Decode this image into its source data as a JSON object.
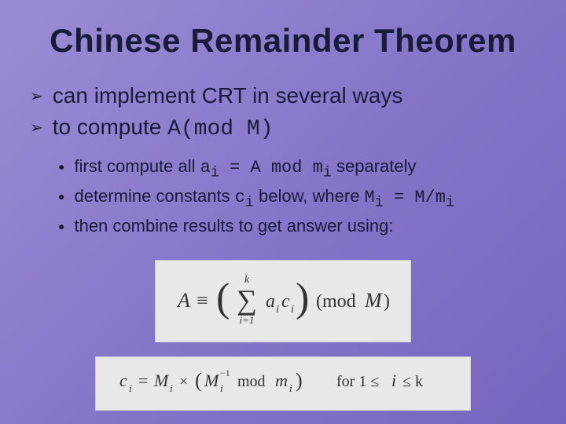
{
  "title": "Chinese Remainder Theorem",
  "bullets": [
    {
      "text_before": "can implement CRT in several ways",
      "mono": "",
      "text_after": ""
    },
    {
      "text_before": "to compute ",
      "mono": "A(mod M)",
      "text_after": ""
    }
  ],
  "sub_bullets": [
    {
      "parts": [
        "first compute all ",
        "a",
        "i",
        " = A mod m",
        "i",
        " separately"
      ]
    },
    {
      "parts": [
        "determine constants ",
        "c",
        "i",
        " below, where ",
        "M",
        "i",
        " = M/m",
        "i"
      ]
    },
    {
      "parts": [
        "then combine results to get answer using:"
      ]
    }
  ],
  "formula1": {
    "lhs": "A",
    "op": "≡",
    "sum_upper": "k",
    "sum_lower": "i=1",
    "term_a": "a",
    "term_a_sub": "i",
    "term_c": "c",
    "term_c_sub": "i",
    "mod_text": "(mod",
    "mod_var": "M",
    "close": ")"
  },
  "formula2": {
    "lhs_c": "c",
    "lhs_c_sub": "i",
    "eq": "=",
    "M1": "M",
    "M1_sub": "i",
    "times": "×",
    "lparen": "(",
    "M2": "M",
    "M2_sub": "i",
    "M2_sup": "−1",
    "mod_word": "mod",
    "m": "m",
    "m_sub": "i",
    "rparen": ")",
    "for_text": "for 1 ≤",
    "ivar": "i",
    "le_k": "≤ k"
  },
  "colors": {
    "background_start": "#9a8dd4",
    "background_end": "#7565bf",
    "title_color": "#1a1a3a",
    "text_color": "#1a1a3a",
    "formula_bg": "#e8e8e8",
    "formula_text": "#333333"
  },
  "typography": {
    "title_fontsize": 42,
    "bullet_fontsize": 28,
    "sub_bullet_fontsize": 22,
    "formula_fontsize": 24
  }
}
